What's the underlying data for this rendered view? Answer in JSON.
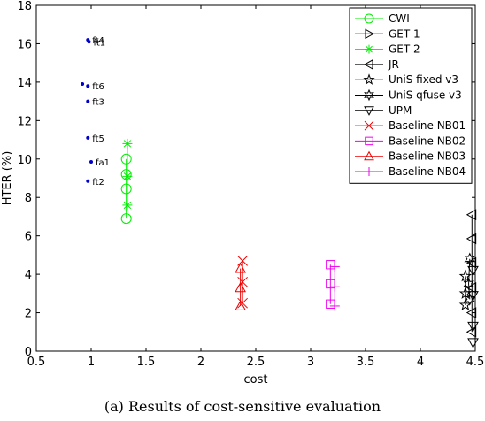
{
  "caption": "(a) Results of cost-sensitive evaluation",
  "chart_data": {
    "type": "scatter",
    "title": "",
    "xlabel": "cost",
    "ylabel": "HTER (%)",
    "xlim": [
      0.5,
      4.5
    ],
    "ylim": [
      0,
      18
    ],
    "xticks": [
      0.5,
      1,
      1.5,
      2,
      2.5,
      3,
      3.5,
      4,
      4.5
    ],
    "xtick_labels": [
      "0.5",
      "1",
      "1.5",
      "2",
      "2.5",
      "3",
      "3.5",
      "4",
      "4.5"
    ],
    "yticks": [
      0,
      2,
      4,
      6,
      8,
      10,
      12,
      14,
      16,
      18
    ],
    "ytick_labels": [
      "0",
      "2",
      "4",
      "6",
      "8",
      "10",
      "12",
      "14",
      "16",
      "18"
    ],
    "grid": false,
    "legend_position": "top-right",
    "annotated_points": {
      "color": "#0000cc",
      "points": [
        {
          "label": "ft4",
          "x": 0.97,
          "y": 16.2
        },
        {
          "label": "ft1",
          "x": 0.98,
          "y": 16.1
        },
        {
          "label": "ft6",
          "x": 0.97,
          "y": 13.8
        },
        {
          "label": "ft3",
          "x": 0.97,
          "y": 13.0
        },
        {
          "label": "ft5",
          "x": 0.97,
          "y": 11.1
        },
        {
          "label": "fa1",
          "x": 1.0,
          "y": 9.85
        },
        {
          "label": "ft2",
          "x": 0.97,
          "y": 8.85
        }
      ],
      "extra_dots": [
        {
          "x": 0.92,
          "y": 13.9
        }
      ]
    },
    "series": [
      {
        "name": "CWI",
        "marker": "circle",
        "color": "#00ee00",
        "points": [
          {
            "x": 1.32,
            "y": 6.9
          },
          {
            "x": 1.32,
            "y": 8.45
          },
          {
            "x": 1.32,
            "y": 9.2
          },
          {
            "x": 1.32,
            "y": 10.0
          }
        ]
      },
      {
        "name": "GET 1",
        "marker": "triangle-right",
        "color": "#000000",
        "points": []
      },
      {
        "name": "GET 2",
        "marker": "asterisk",
        "color": "#00ee00",
        "points": [
          {
            "x": 1.33,
            "y": 7.6
          },
          {
            "x": 1.33,
            "y": 9.1
          },
          {
            "x": 1.33,
            "y": 10.8
          }
        ]
      },
      {
        "name": "JR",
        "marker": "triangle-left",
        "color": "#000000",
        "points": [
          {
            "x": 4.47,
            "y": 7.1
          },
          {
            "x": 4.47,
            "y": 5.85
          },
          {
            "x": 4.47,
            "y": 4.6
          },
          {
            "x": 4.47,
            "y": 3.3
          },
          {
            "x": 4.47,
            "y": 2.0
          },
          {
            "x": 4.47,
            "y": 1.0
          }
        ]
      },
      {
        "name": "UniS fixed v3",
        "marker": "pentagram",
        "color": "#000000",
        "points": [
          {
            "x": 4.41,
            "y": 3.9
          },
          {
            "x": 4.41,
            "y": 3.0
          },
          {
            "x": 4.41,
            "y": 2.4
          }
        ]
      },
      {
        "name": "UniS qfuse v3",
        "marker": "hexagram",
        "color": "#000000",
        "points": [
          {
            "x": 4.45,
            "y": 4.8
          },
          {
            "x": 4.44,
            "y": 3.5
          },
          {
            "x": 4.45,
            "y": 2.7
          }
        ]
      },
      {
        "name": "UPM",
        "marker": "triangle-down",
        "color": "#000000",
        "points": [
          {
            "x": 4.48,
            "y": 4.2
          },
          {
            "x": 4.48,
            "y": 2.9
          },
          {
            "x": 4.48,
            "y": 1.3
          },
          {
            "x": 4.48,
            "y": 0.45
          }
        ]
      },
      {
        "name": "Baseline NB01",
        "marker": "x",
        "color": "#ee0000",
        "points": [
          {
            "x": 2.38,
            "y": 2.5
          },
          {
            "x": 2.38,
            "y": 3.6
          },
          {
            "x": 2.38,
            "y": 4.7
          }
        ]
      },
      {
        "name": "Baseline NB02",
        "marker": "square",
        "color": "#ee00ee",
        "points": [
          {
            "x": 3.18,
            "y": 2.45
          },
          {
            "x": 3.18,
            "y": 3.5
          },
          {
            "x": 3.18,
            "y": 4.5
          }
        ]
      },
      {
        "name": "Baseline NB03",
        "marker": "triangle-up",
        "color": "#ee0000",
        "points": [
          {
            "x": 2.36,
            "y": 2.35
          },
          {
            "x": 2.36,
            "y": 3.3
          },
          {
            "x": 2.36,
            "y": 4.3
          }
        ]
      },
      {
        "name": "Baseline NB04",
        "marker": "plus",
        "color": "#ee00ee",
        "points": [
          {
            "x": 3.22,
            "y": 2.35
          },
          {
            "x": 3.22,
            "y": 3.35
          },
          {
            "x": 3.22,
            "y": 4.4
          }
        ]
      }
    ]
  }
}
